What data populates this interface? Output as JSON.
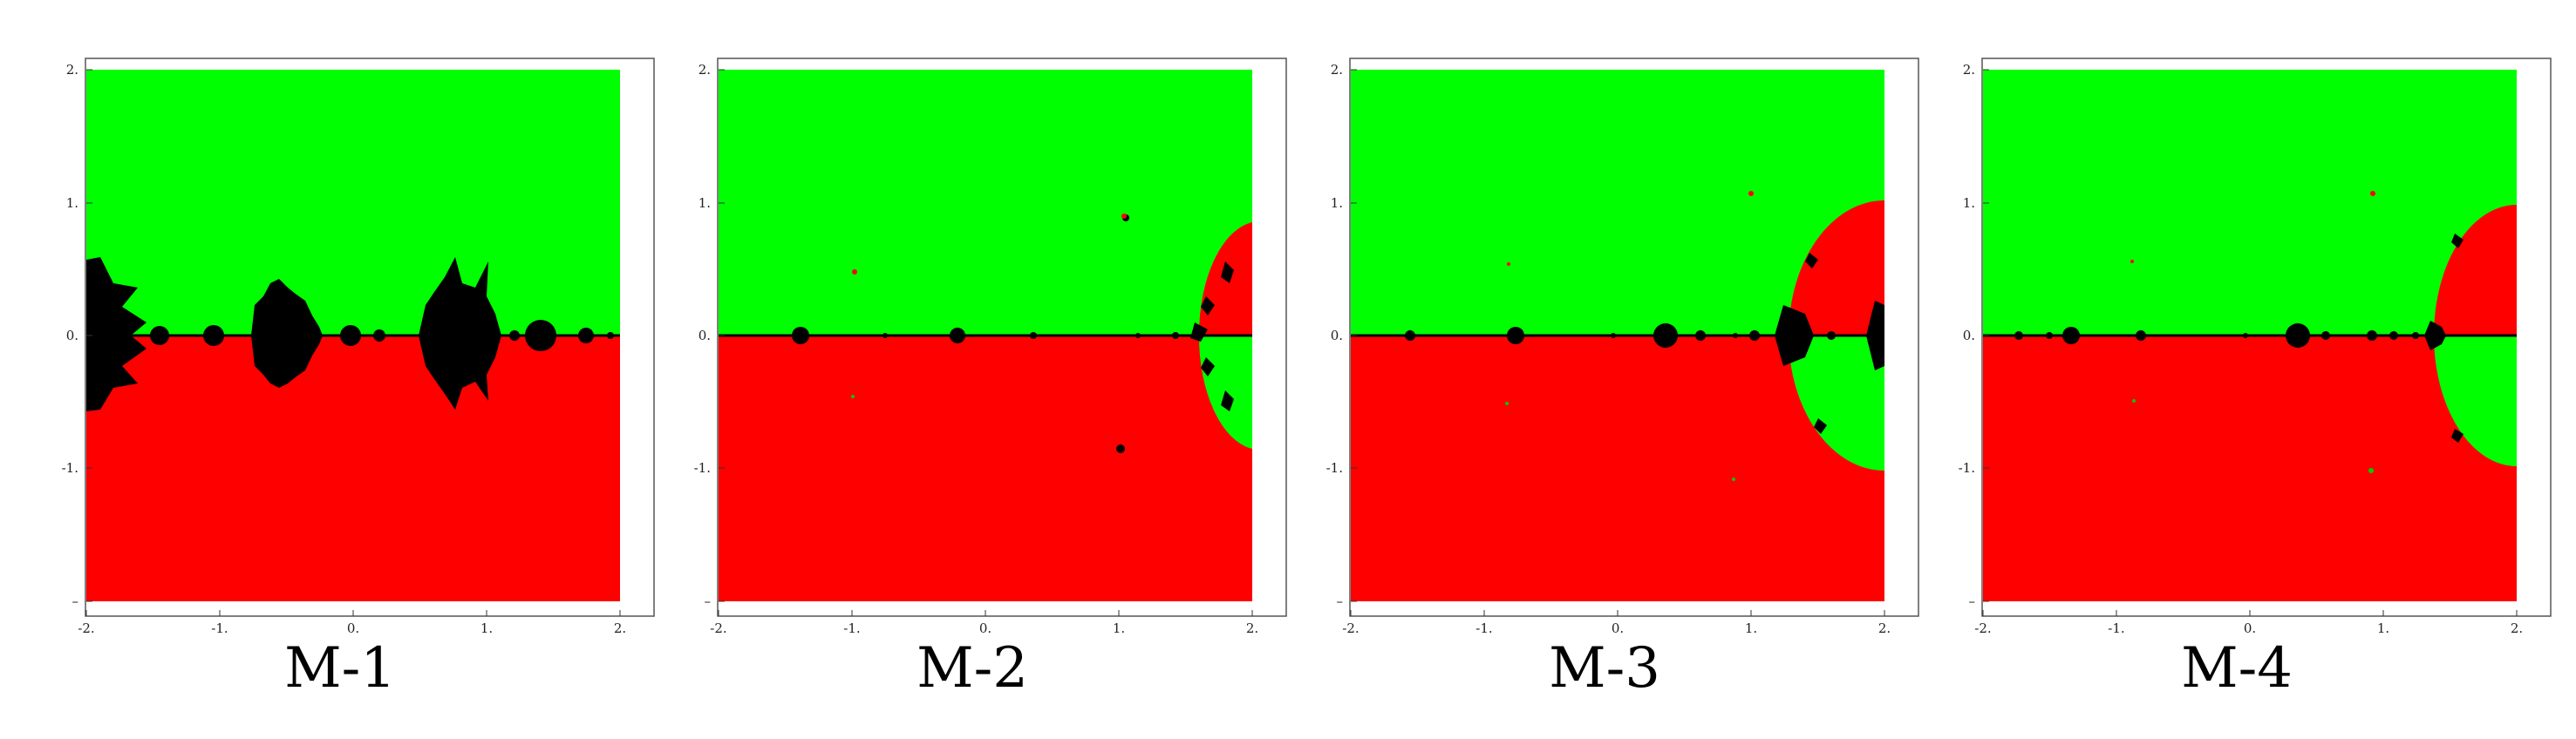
{
  "figure": {
    "panels": [
      {
        "caption": "M-1"
      },
      {
        "caption": "M-2"
      },
      {
        "caption": "M-3"
      },
      {
        "caption": "M-4"
      }
    ],
    "x_ticks": [
      "-2.",
      "-1.",
      "0.",
      "1.",
      "2."
    ],
    "y_ticks": [
      "2.",
      "1.",
      "0.",
      "-1.",
      "–"
    ],
    "x_range": [
      -2,
      2
    ],
    "y_range": [
      -2,
      2
    ],
    "colors": {
      "upper_basin": "#00ff00",
      "lower_basin": "#ff0000",
      "divergent": "#000000"
    }
  }
}
